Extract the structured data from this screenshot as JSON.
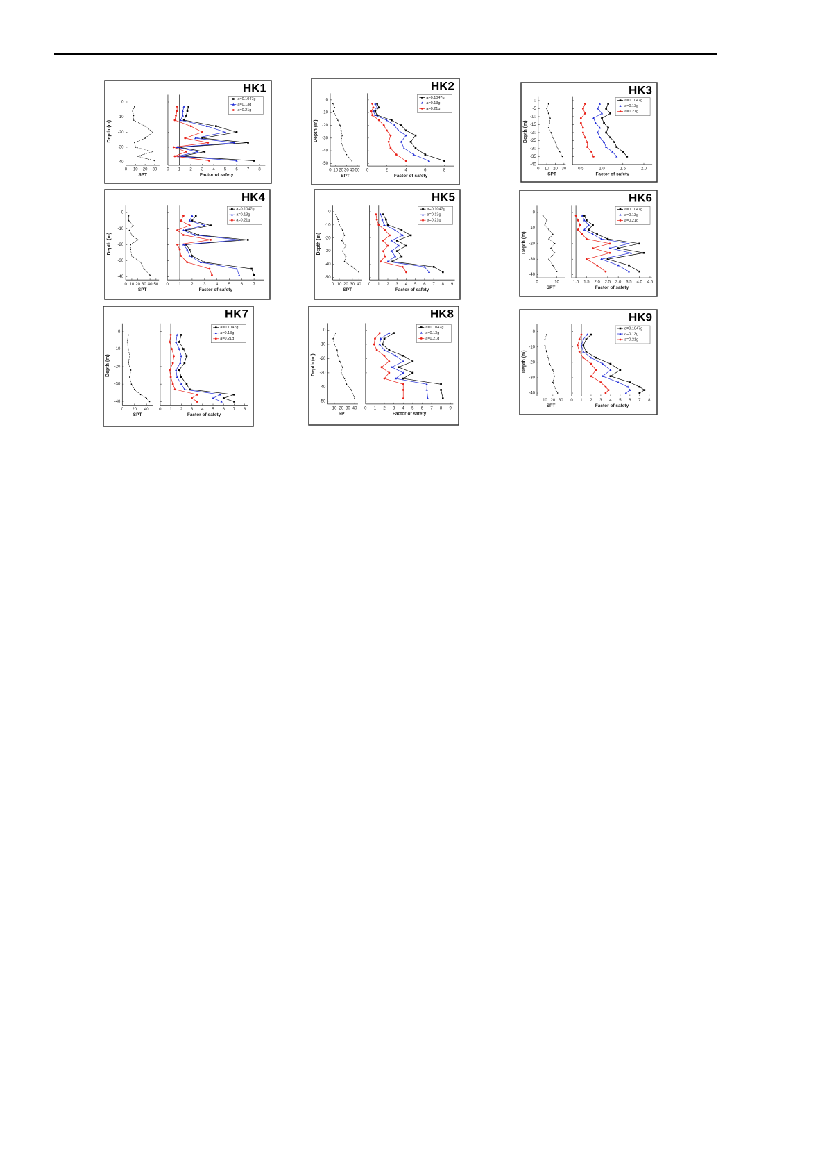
{
  "chart_data": [
    {
      "type": "line",
      "title": "HK1",
      "ylabel": "Depth (m)",
      "ylim": [
        -42,
        3
      ],
      "yticks": [
        0,
        -10,
        -20,
        -30,
        -40
      ],
      "depth": [
        -3,
        -6,
        -9,
        -12,
        -16,
        -20,
        -24,
        -27,
        -30,
        -33,
        -36,
        -39
      ],
      "spt": {
        "xlabel": "SPT",
        "xlim": [
          0,
          35
        ],
        "xticks": [
          0,
          10,
          20,
          30
        ],
        "values": [
          9,
          7,
          8,
          8,
          20,
          28,
          20,
          9,
          10,
          28,
          12,
          30
        ]
      },
      "fos": {
        "xlabel": "Factor of safety",
        "xlim": [
          0,
          8.5
        ],
        "xticks": [
          0,
          1,
          2,
          3,
          4,
          5,
          6,
          7,
          8
        ],
        "reference": 1,
        "series": [
          {
            "name": "a=0.1047g",
            "color": "#000000",
            "values": [
              1.8,
              1.7,
              1.6,
              1.4,
              4.2,
              6.0,
              3.0,
              7.0,
              1.0,
              3.2,
              1.2,
              7.5
            ]
          },
          {
            "name": "a=0.13g",
            "color": "#1f2bd6",
            "values": [
              1.4,
              1.3,
              1.3,
              1.1,
              3.4,
              5.0,
              2.4,
              5.8,
              0.8,
              2.6,
              0.9,
              6.0
            ]
          },
          {
            "name": "a=0.21g",
            "color": "#e8231a",
            "values": [
              0.8,
              0.8,
              0.7,
              0.6,
              2.0,
              3.0,
              1.5,
              3.5,
              0.5,
              1.6,
              0.6,
              3.6
            ]
          }
        ]
      }
    },
    {
      "type": "line",
      "title": "HK2",
      "ylabel": "Depth (m)",
      "ylim": [
        -52,
        3
      ],
      "yticks": [
        0,
        -10,
        -20,
        -30,
        -40,
        -50
      ],
      "depth": [
        -3,
        -6,
        -9,
        -12,
        -16,
        -20,
        -24,
        -28,
        -33,
        -38,
        -43,
        -48
      ],
      "spt": {
        "xlabel": "SPT",
        "xlim": [
          0,
          55
        ],
        "xticks": [
          0,
          10,
          20,
          30,
          40,
          50
        ],
        "values": [
          5,
          8,
          6,
          10,
          14,
          18,
          20,
          22,
          20,
          24,
          30,
          40
        ]
      },
      "fos": {
        "xlabel": "Factor of safety",
        "xlim": [
          0,
          9
        ],
        "xticks": [
          0,
          2,
          4,
          6,
          8
        ],
        "reference": 1,
        "series": [
          {
            "name": "a=0.1047g",
            "color": "#000000",
            "values": [
              1.0,
              1.2,
              0.8,
              1.0,
              2.5,
              3.5,
              4.0,
              5.0,
              4.5,
              5.0,
              6.0,
              8.0
            ]
          },
          {
            "name": "a=0.13g",
            "color": "#1f2bd6",
            "values": [
              0.8,
              1.0,
              0.6,
              0.8,
              2.0,
              2.8,
              3.2,
              4.0,
              3.5,
              3.8,
              4.8,
              6.4
            ]
          },
          {
            "name": "a=0.21g",
            "color": "#e8231a",
            "values": [
              0.5,
              0.6,
              0.4,
              0.5,
              1.2,
              1.7,
              2.0,
              2.4,
              2.2,
              2.4,
              3.0,
              4.0
            ]
          }
        ]
      }
    },
    {
      "type": "line",
      "title": "HK3",
      "ylabel": "Depth (m)",
      "ylim": [
        -40,
        1
      ],
      "yticks": [
        0,
        -5,
        -10,
        -15,
        -20,
        -25,
        -30,
        -35,
        -40
      ],
      "depth": [
        -2,
        -5,
        -8,
        -11,
        -14,
        -17,
        -20,
        -23,
        -26,
        -29,
        -32,
        -35
      ],
      "spt": {
        "xlabel": "SPT",
        "xlim": [
          0,
          32
        ],
        "xticks": [
          0,
          10,
          20,
          30
        ],
        "values": [
          12,
          10,
          12,
          14,
          13,
          12,
          15,
          17,
          20,
          22,
          25,
          28
        ]
      },
      "fos": {
        "xlabel": "Factor of safety",
        "xlim": [
          0.3,
          2.2
        ],
        "xticks": [
          0.5,
          {
            "value": 1,
            "label": "1.0"
          },
          1.5,
          {
            "value": 2,
            "label": "2.0"
          }
        ],
        "reference": 1,
        "series": [
          {
            "name": "a=0.1047g",
            "color": "#000000",
            "values": [
              1.15,
              1.1,
              1.2,
              1.0,
              1.05,
              1.15,
              1.1,
              1.2,
              1.3,
              1.35,
              1.5,
              1.6
            ]
          },
          {
            "name": "a=0.13g",
            "color": "#1f2bd6",
            "values": [
              0.95,
              0.9,
              1.0,
              0.8,
              0.85,
              0.95,
              0.9,
              0.95,
              1.05,
              1.1,
              1.25,
              1.35
            ]
          },
          {
            "name": "a=0.21g",
            "color": "#e8231a",
            "values": [
              0.6,
              0.55,
              0.6,
              0.5,
              0.5,
              0.55,
              0.55,
              0.6,
              0.65,
              0.65,
              0.75,
              0.8
            ]
          }
        ]
      }
    },
    {
      "type": "line",
      "title": "HK4",
      "ylabel": "Depth (m)",
      "ylim": [
        -42,
        3
      ],
      "yticks": [
        0,
        -10,
        -20,
        -30,
        -40
      ],
      "depth": [
        -2,
        -5,
        -8,
        -11,
        -14,
        -17,
        -20,
        -23,
        -27,
        -31,
        -35,
        -39
      ],
      "spt": {
        "xlabel": "SPT",
        "xlim": [
          0,
          55
        ],
        "xticks": [
          0,
          10,
          20,
          30,
          40,
          50
        ],
        "values": [
          5,
          5,
          12,
          6,
          10,
          20,
          8,
          8,
          10,
          25,
          30,
          40
        ]
      },
      "fos": {
        "xlabel": "Factor of safety",
        "xlim": [
          0,
          7.8
        ],
        "xticks": [
          0,
          1,
          2,
          3,
          4,
          5,
          6,
          7
        ],
        "reference": 1,
        "series": [
          {
            "name": "a=0.1047g",
            "color": "#000000",
            "values": [
              2.3,
              2.0,
              3.5,
              1.5,
              2.5,
              6.5,
              1.5,
              1.8,
              2.0,
              3.0,
              6.8,
              7.0
            ]
          },
          {
            "name": "a=0.13g",
            "color": "#1f2bd6",
            "values": [
              2.0,
              1.8,
              3.0,
              1.3,
              2.2,
              5.8,
              1.3,
              1.6,
              1.8,
              2.7,
              5.6,
              5.8
            ]
          },
          {
            "name": "a=0.21g",
            "color": "#e8231a",
            "values": [
              1.3,
              1.1,
              1.8,
              0.8,
              1.3,
              3.5,
              0.8,
              1.0,
              1.1,
              1.6,
              3.4,
              3.6
            ]
          }
        ]
      }
    },
    {
      "type": "line",
      "title": "HK5",
      "ylabel": "Depth (m)",
      "ylim": [
        -52,
        3
      ],
      "yticks": [
        0,
        -10,
        -20,
        -30,
        -40,
        -50
      ],
      "depth": [
        -2,
        -6,
        -10,
        -14,
        -18,
        -22,
        -26,
        -30,
        -34,
        -38,
        -42,
        -46
      ],
      "spt": {
        "xlabel": "SPT",
        "xlim": [
          0,
          45
        ],
        "xticks": [
          0,
          10,
          20,
          30,
          40
        ],
        "values": [
          5,
          8,
          10,
          15,
          18,
          14,
          20,
          15,
          20,
          18,
          30,
          40
        ]
      },
      "fos": {
        "xlabel": "Factor of safety",
        "xlim": [
          0,
          9.3
        ],
        "xticks": [
          0,
          1,
          2,
          3,
          4,
          5,
          6,
          7,
          8,
          9
        ],
        "reference": 1,
        "series": [
          {
            "name": "a=0.1047g",
            "color": "#000000",
            "values": [
              1.5,
              1.8,
              2.0,
              3.5,
              4.5,
              3.0,
              4.0,
              3.0,
              3.5,
              2.5,
              7.0,
              8.0
            ]
          },
          {
            "name": "a=0.13g",
            "color": "#1f2bd6",
            "values": [
              1.2,
              1.4,
              1.6,
              2.8,
              3.6,
              2.4,
              3.2,
              2.4,
              2.8,
              2.0,
              6.0,
              6.5
            ]
          },
          {
            "name": "a=0.21g",
            "color": "#e8231a",
            "values": [
              0.7,
              0.8,
              1.0,
              1.7,
              2.2,
              1.5,
              2.0,
              1.5,
              1.7,
              1.2,
              3.6,
              4.0
            ]
          }
        ]
      }
    },
    {
      "type": "line",
      "title": "HK6",
      "ylabel": "Depth (m)",
      "ylim": [
        -42,
        3
      ],
      "yticks": [
        0,
        -10,
        -20,
        -30,
        -40
      ],
      "depth": [
        -2,
        -5,
        -8,
        -11,
        -14,
        -17,
        -20,
        -23,
        -26,
        -30,
        -34,
        -38
      ],
      "spt": {
        "xlabel": "SPT",
        "xlim": [
          0,
          14
        ],
        "xticks": [
          0,
          10
        ],
        "values": [
          3,
          5,
          4,
          6,
          8,
          6,
          9,
          7,
          9,
          6,
          8,
          10
        ]
      },
      "fos": {
        "xlabel": "Factor of safety",
        "xlim": [
          0.8,
          4.6
        ],
        "xticks": [
          {
            "value": 1,
            "label": "1.0"
          },
          1.5,
          {
            "value": 2,
            "label": "2.0"
          },
          2.5,
          {
            "value": 3,
            "label": "3.0"
          },
          3.5,
          {
            "value": 4,
            "label": "4.0"
          },
          4.5
        ],
        "reference": 1,
        "series": [
          {
            "name": "a=0.1047g",
            "color": "#000000",
            "values": [
              1.4,
              1.5,
              1.8,
              1.6,
              2.0,
              2.5,
              4.0,
              3.0,
              4.2,
              2.5,
              3.5,
              4.0
            ]
          },
          {
            "name": "a=0.13g",
            "color": "#1f2bd6",
            "values": [
              1.3,
              1.4,
              1.6,
              1.4,
              1.8,
              2.2,
              3.5,
              2.6,
              3.6,
              2.2,
              3.0,
              3.5
            ]
          },
          {
            "name": "a=0.21g",
            "color": "#e8231a",
            "values": [
              1.0,
              1.1,
              1.2,
              1.1,
              1.3,
              1.5,
              2.6,
              1.8,
              2.6,
              1.5,
              2.0,
              2.4
            ]
          }
        ]
      }
    },
    {
      "type": "line",
      "title": "HK7",
      "ylabel": "Depth (m)",
      "ylim": [
        -42,
        3
      ],
      "yticks": [
        0,
        -10,
        -20,
        -30,
        -40
      ],
      "depth": [
        -2,
        -6,
        -10,
        -14,
        -18,
        -22,
        -26,
        -30,
        -33,
        -36,
        -38,
        -40
      ],
      "spt": {
        "xlabel": "SPT",
        "xlim": [
          0,
          50
        ],
        "xticks": [
          0,
          20,
          40
        ],
        "values": [
          10,
          8,
          10,
          12,
          10,
          14,
          12,
          15,
          20,
          30,
          40,
          45
        ]
      },
      "fos": {
        "xlabel": "Factor of safety",
        "xlim": [
          0,
          8.3
        ],
        "xticks": [
          0,
          1,
          2,
          3,
          4,
          5,
          6,
          7,
          8
        ],
        "reference": 1,
        "series": [
          {
            "name": "a=0.1047g",
            "color": "#000000",
            "values": [
              2.0,
              1.8,
              2.2,
              2.5,
              2.3,
              1.8,
              2.0,
              2.5,
              2.8,
              7.0,
              6.0,
              7.0
            ]
          },
          {
            "name": "a=0.13g",
            "color": "#1f2bd6",
            "values": [
              1.6,
              1.5,
              1.8,
              2.0,
              1.9,
              1.5,
              1.6,
              2.0,
              2.3,
              5.7,
              5.0,
              5.8
            ]
          },
          {
            "name": "a=0.21g",
            "color": "#e8231a",
            "values": [
              1.0,
              0.9,
              1.1,
              1.3,
              1.2,
              0.9,
              1.0,
              1.2,
              1.4,
              3.5,
              3.0,
              3.5
            ]
          }
        ]
      }
    },
    {
      "type": "line",
      "title": "HK8",
      "ylabel": "Depth (m)",
      "ylim": [
        -52,
        3
      ],
      "yticks": [
        0,
        -10,
        -20,
        -30,
        -40,
        -50
      ],
      "depth": [
        -2,
        -6,
        -10,
        -14,
        -18,
        -22,
        -26,
        -30,
        -34,
        -38,
        -42,
        -48
      ],
      "spt": {
        "xlabel": "SPT",
        "xlim": [
          0,
          45
        ],
        "xticks": [
          10,
          20,
          30,
          40
        ],
        "values": [
          12,
          8,
          10,
          14,
          15,
          18,
          22,
          20,
          25,
          28,
          35,
          40
        ]
      },
      "fos": {
        "xlabel": "Factor of safety",
        "xlim": [
          0,
          9.3
        ],
        "xticks": [
          0,
          1,
          2,
          3,
          4,
          5,
          6,
          7,
          8,
          9
        ],
        "reference": 1,
        "series": [
          {
            "name": "a=0.1047g",
            "color": "#000000",
            "values": [
              3.0,
              2.0,
              1.8,
              2.5,
              4.0,
              5.0,
              3.5,
              5.0,
              4.0,
              8.0,
              8.0,
              8.2
            ]
          },
          {
            "name": "a=0.13g",
            "color": "#1f2bd6",
            "values": [
              2.5,
              1.6,
              1.5,
              2.0,
              3.2,
              4.0,
              2.8,
              4.0,
              3.2,
              6.5,
              6.5,
              6.6
            ]
          },
          {
            "name": "a=0.21g",
            "color": "#e8231a",
            "values": [
              1.5,
              1.0,
              0.9,
              1.2,
              2.0,
              2.5,
              1.7,
              2.5,
              2.0,
              4.0,
              4.0,
              4.0
            ]
          }
        ]
      }
    },
    {
      "type": "line",
      "title": "HK9",
      "ylabel": "Depth (m)",
      "ylim": [
        -42,
        3
      ],
      "yticks": [
        0,
        -10,
        -20,
        -30,
        -40
      ],
      "depth": [
        -2,
        -5,
        -9,
        -13,
        -17,
        -21,
        -25,
        -29,
        -33,
        -36,
        -38,
        -40
      ],
      "spt": {
        "xlabel": "SPT",
        "xlim": [
          0,
          35
        ],
        "xticks": [
          10,
          20,
          30
        ],
        "values": [
          12,
          10,
          10,
          12,
          14,
          16,
          20,
          22,
          20,
          22,
          24,
          26
        ]
      },
      "fos": {
        "xlabel": "Factor of safety",
        "xlim": [
          0,
          8.3
        ],
        "xticks": [
          0,
          1,
          2,
          3,
          4,
          5,
          6,
          7,
          8
        ],
        "reference": 1,
        "series": [
          {
            "name": "a=0.1047g",
            "color": "#000000",
            "values": [
              2.0,
              1.5,
              1.2,
              1.5,
              2.5,
              4.0,
              5.0,
              4.0,
              6.0,
              7.0,
              7.5,
              7.0
            ]
          },
          {
            "name": "a=0.13g",
            "color": "#1f2bd6",
            "values": [
              1.6,
              1.2,
              1.0,
              1.2,
              2.0,
              3.2,
              4.0,
              3.2,
              4.8,
              5.8,
              6.0,
              5.6
            ]
          },
          {
            "name": "a=0.21g",
            "color": "#e8231a",
            "values": [
              1.0,
              0.8,
              0.6,
              0.8,
              1.2,
              2.0,
              2.5,
              2.0,
              3.0,
              3.5,
              3.8,
              3.5
            ]
          }
        ]
      }
    }
  ]
}
